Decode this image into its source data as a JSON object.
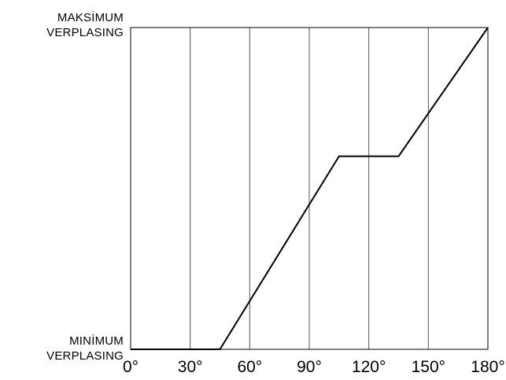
{
  "chart_data": {
    "type": "line",
    "title": "",
    "xlabel": "",
    "ylabel_top": [
      "MAKSİMUM",
      "VERPLASING"
    ],
    "ylabel_bottom": [
      "MINİMUM",
      "VERPLASING"
    ],
    "x_ticks": [
      {
        "value": 0,
        "label": "0°"
      },
      {
        "value": 30,
        "label": "30°"
      },
      {
        "value": 60,
        "label": "60°"
      },
      {
        "value": 90,
        "label": "90°"
      },
      {
        "value": 120,
        "label": "120°"
      },
      {
        "value": 150,
        "label": "150°"
      },
      {
        "value": 180,
        "label": "180°"
      }
    ],
    "xlim": [
      0,
      180
    ],
    "ylim": [
      0,
      1
    ],
    "grid": true,
    "series": [
      {
        "x": [
          0,
          45,
          105,
          135,
          180
        ],
        "y": [
          0,
          0,
          0.6,
          0.6,
          1
        ]
      }
    ]
  }
}
